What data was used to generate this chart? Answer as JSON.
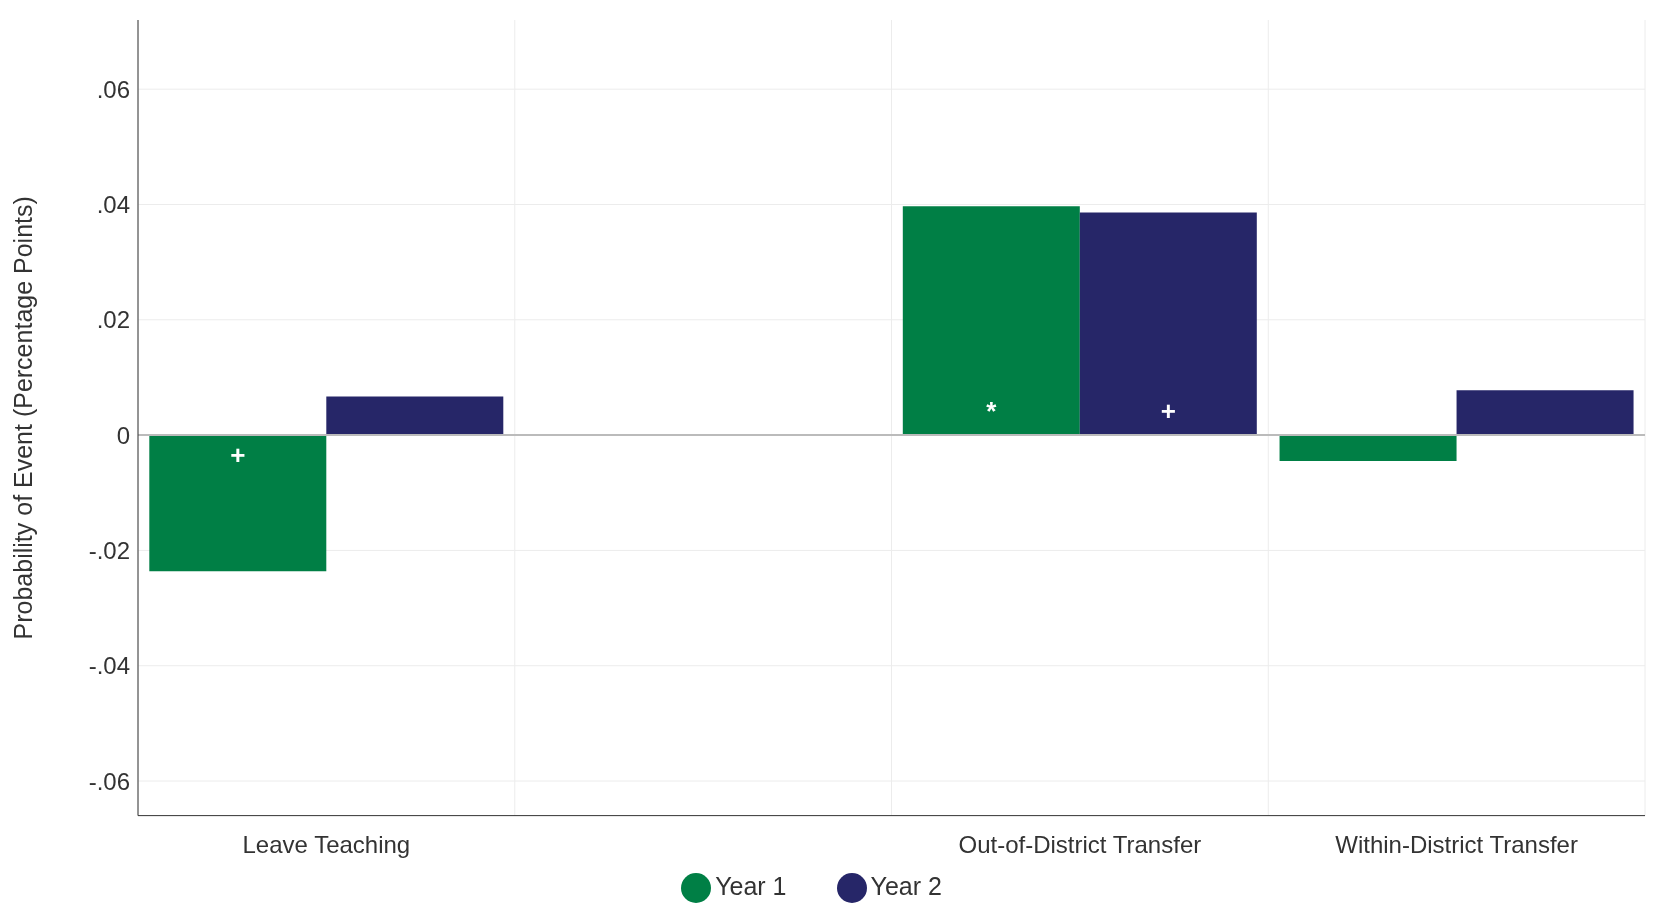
{
  "chart_data": {
    "type": "bar",
    "ylabel": "Probability of Event (Percentage Points)",
    "categories": [
      "Leave Teaching",
      null,
      "Out-of-District Transfer",
      "Within-District Transfer"
    ],
    "series": [
      {
        "name": "Year 1",
        "color": "#007f45",
        "values": [
          -0.0236,
          null,
          0.0397,
          -0.0045
        ],
        "value_labels": [
          "+",
          null,
          "*",
          null
        ]
      },
      {
        "name": "Year 2",
        "color": "#262668",
        "values": [
          0.0067,
          null,
          0.0386,
          0.0078
        ],
        "value_labels": [
          null,
          null,
          "+",
          null
        ]
      }
    ],
    "ylim": [
      -0.066,
      0.072
    ],
    "yticks": [
      {
        "value": -0.06,
        "label": "-.06"
      },
      {
        "value": -0.04,
        "label": "-.04"
      },
      {
        "value": -0.02,
        "label": "-.02"
      },
      0,
      {
        "value": 0.02,
        "label": ".02"
      },
      {
        "value": 0.04,
        "label": ".04"
      },
      {
        "value": 0.06,
        "label": ".06"
      }
    ],
    "ref_lines": [
      {
        "axis": "y",
        "value": 0,
        "color": "#bbbbbb"
      }
    ],
    "grid": true,
    "legend": "bottom"
  }
}
